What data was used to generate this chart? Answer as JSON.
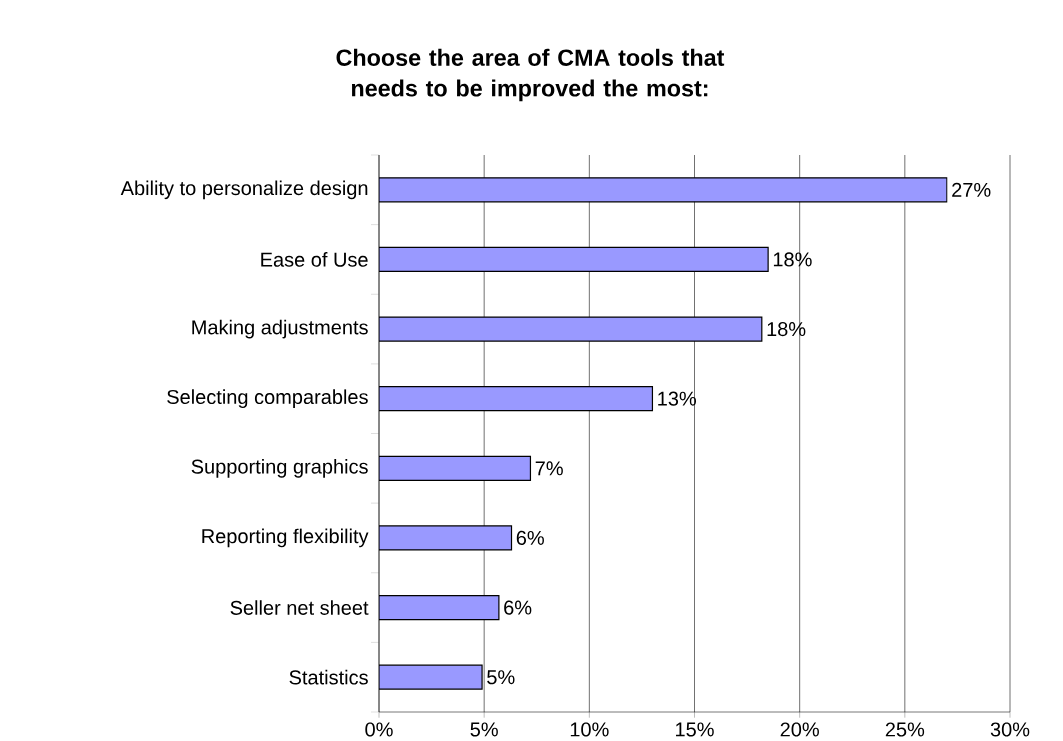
{
  "chart_data": {
    "type": "bar",
    "orientation": "horizontal",
    "title": "Choose the area of CMA tools that needs to be improved the most:",
    "categories": [
      "Ability to personalize design",
      "Ease of Use",
      "Making adjustments",
      "Selecting comparables",
      "Supporting graphics",
      "Reporting flexibility",
      "Seller net sheet",
      "Statistics"
    ],
    "values": [
      27.0,
      18.5,
      18.2,
      13.0,
      7.2,
      6.3,
      5.7,
      4.9
    ],
    "value_labels": [
      "27%",
      "18%",
      "18%",
      "13%",
      "7%",
      "6%",
      "6%",
      "5%"
    ],
    "color": "#9999ff",
    "xlim": [
      0,
      30
    ],
    "xticks": [
      {
        "value": 0,
        "label": "0%"
      },
      {
        "value": 5,
        "label": "5%"
      },
      {
        "value": 10,
        "label": "10%"
      },
      {
        "value": 15,
        "label": "15%"
      },
      {
        "value": 20,
        "label": "20%"
      },
      {
        "value": 25,
        "label": "25%"
      },
      {
        "value": 30,
        "label": "30%"
      }
    ],
    "grid": "x"
  }
}
